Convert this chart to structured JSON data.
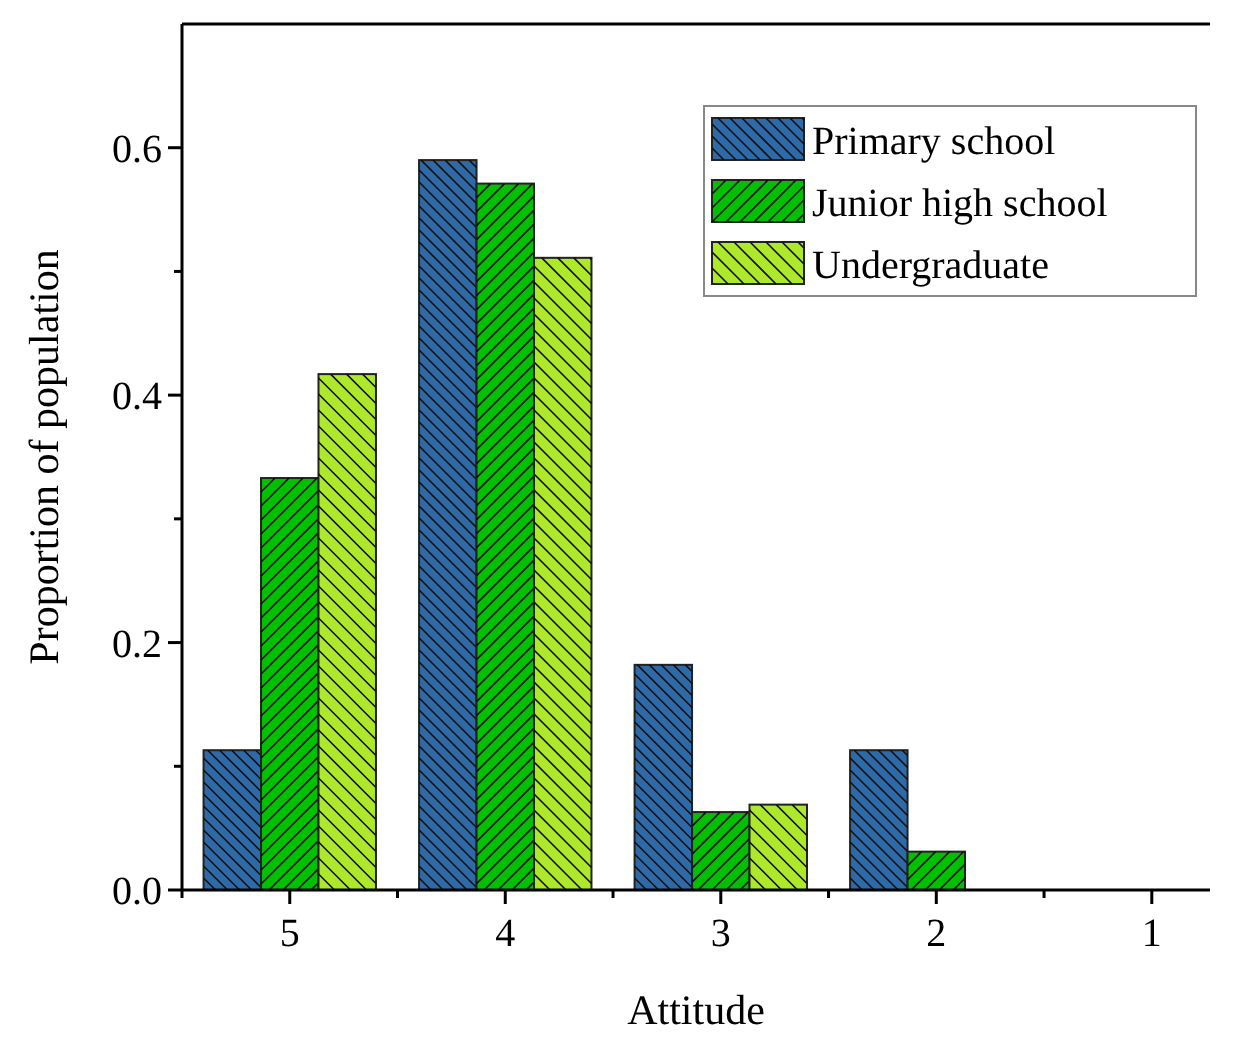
{
  "chart_data": {
    "type": "bar",
    "xlabel": "Attitude",
    "ylabel": "Proportion of population",
    "categories": [
      "5",
      "4",
      "3",
      "2",
      "1"
    ],
    "series": [
      {
        "name": "Primary school",
        "color": "#2e6aa8",
        "values": [
          0.113,
          0.59,
          0.182,
          0.113,
          0
        ]
      },
      {
        "name": "Junior high school",
        "color": "#00c000",
        "values": [
          0.333,
          0.571,
          0.063,
          0.031,
          0
        ]
      },
      {
        "name": "Undergraduate",
        "color": "#aee82a",
        "values": [
          0.417,
          0.511,
          0.069,
          0,
          0
        ]
      }
    ],
    "ylim": [
      0,
      0.7
    ],
    "yticks": [
      {
        "value": 0,
        "label": "0.0"
      },
      {
        "value": 0.1,
        "label": null
      },
      0.2,
      {
        "value": 0.3,
        "label": null
      },
      0.4,
      {
        "value": 0.5,
        "label": null
      },
      0.6
    ],
    "grid": false,
    "legend": "top right"
  }
}
